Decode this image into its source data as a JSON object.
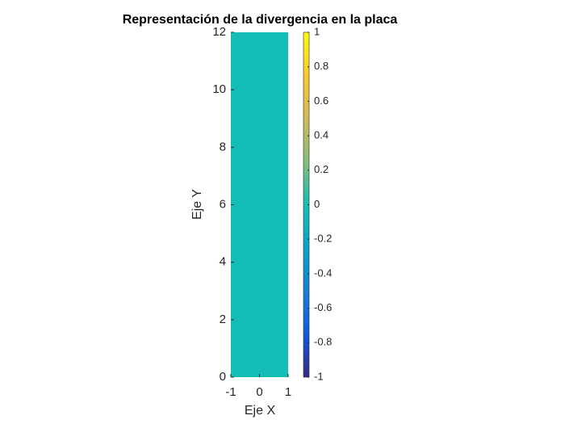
{
  "chart_data": {
    "type": "heatmap",
    "title": "Representación de la divergencia en la placa",
    "xlabel": "Eje X",
    "ylabel": "Eje Y",
    "x_edges": [
      -1,
      1
    ],
    "y_edges": [
      0,
      12
    ],
    "values": [
      [
        0
      ]
    ],
    "xlim": [
      -1,
      1
    ],
    "xticks": [
      -1,
      0,
      1
    ],
    "ylim": [
      0,
      12
    ],
    "yticks": [
      0,
      2,
      4,
      6,
      8,
      10,
      12
    ],
    "colormap": "parula",
    "clim": [
      -1,
      1
    ],
    "cticks": [
      -1,
      -0.8,
      -0.6,
      -0.4,
      -0.2,
      0,
      0.2,
      0.4,
      0.6,
      0.8,
      1
    ]
  }
}
